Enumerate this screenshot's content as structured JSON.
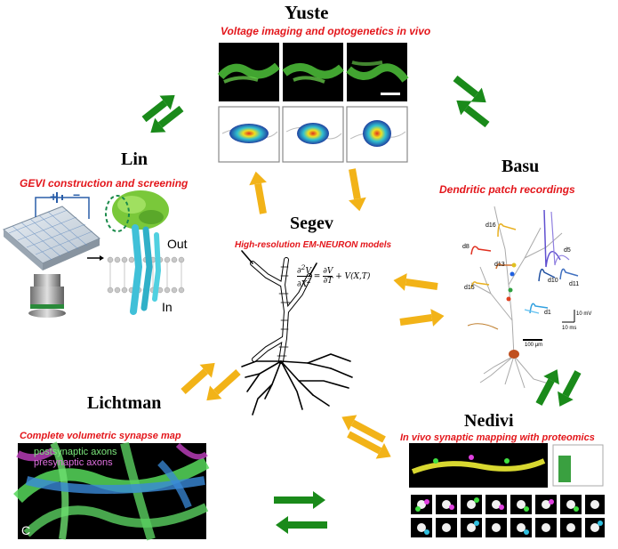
{
  "colors": {
    "green_arrow": "#1a8a1a",
    "yellow_arrow": "#f2b318",
    "subtitle_red": "#e3161b"
  },
  "yuste": {
    "name": "Yuste",
    "subtitle": "Voltage imaging and optogenetics in vivo"
  },
  "lin": {
    "name": "Lin",
    "subtitle": "GEVI construction and screening",
    "label_out": "Out",
    "label_in": "In",
    "plus": "+",
    "minus": "−"
  },
  "basu": {
    "name": "Basu",
    "subtitle": "Dendritic patch recordings",
    "traces": [
      "d16",
      "d8",
      "d13",
      "d15",
      "d5",
      "d10",
      "d11",
      "d1"
    ],
    "scale_mv": "10 mV",
    "scale_ms": "10 ms",
    "scale_um": "100 μm"
  },
  "segev": {
    "name": "Segev",
    "subtitle": "High-resolution EM-NEURON models"
  },
  "lichtman": {
    "name": "Lichtman",
    "subtitle": "Complete volumetric synapse map",
    "overlay1": "postsynaptic axons",
    "overlay2": "presynaptic axons",
    "corner": "C"
  },
  "nedivi": {
    "name": "Nedivi",
    "subtitle": "In vivo synaptic mapping with proteomics"
  }
}
